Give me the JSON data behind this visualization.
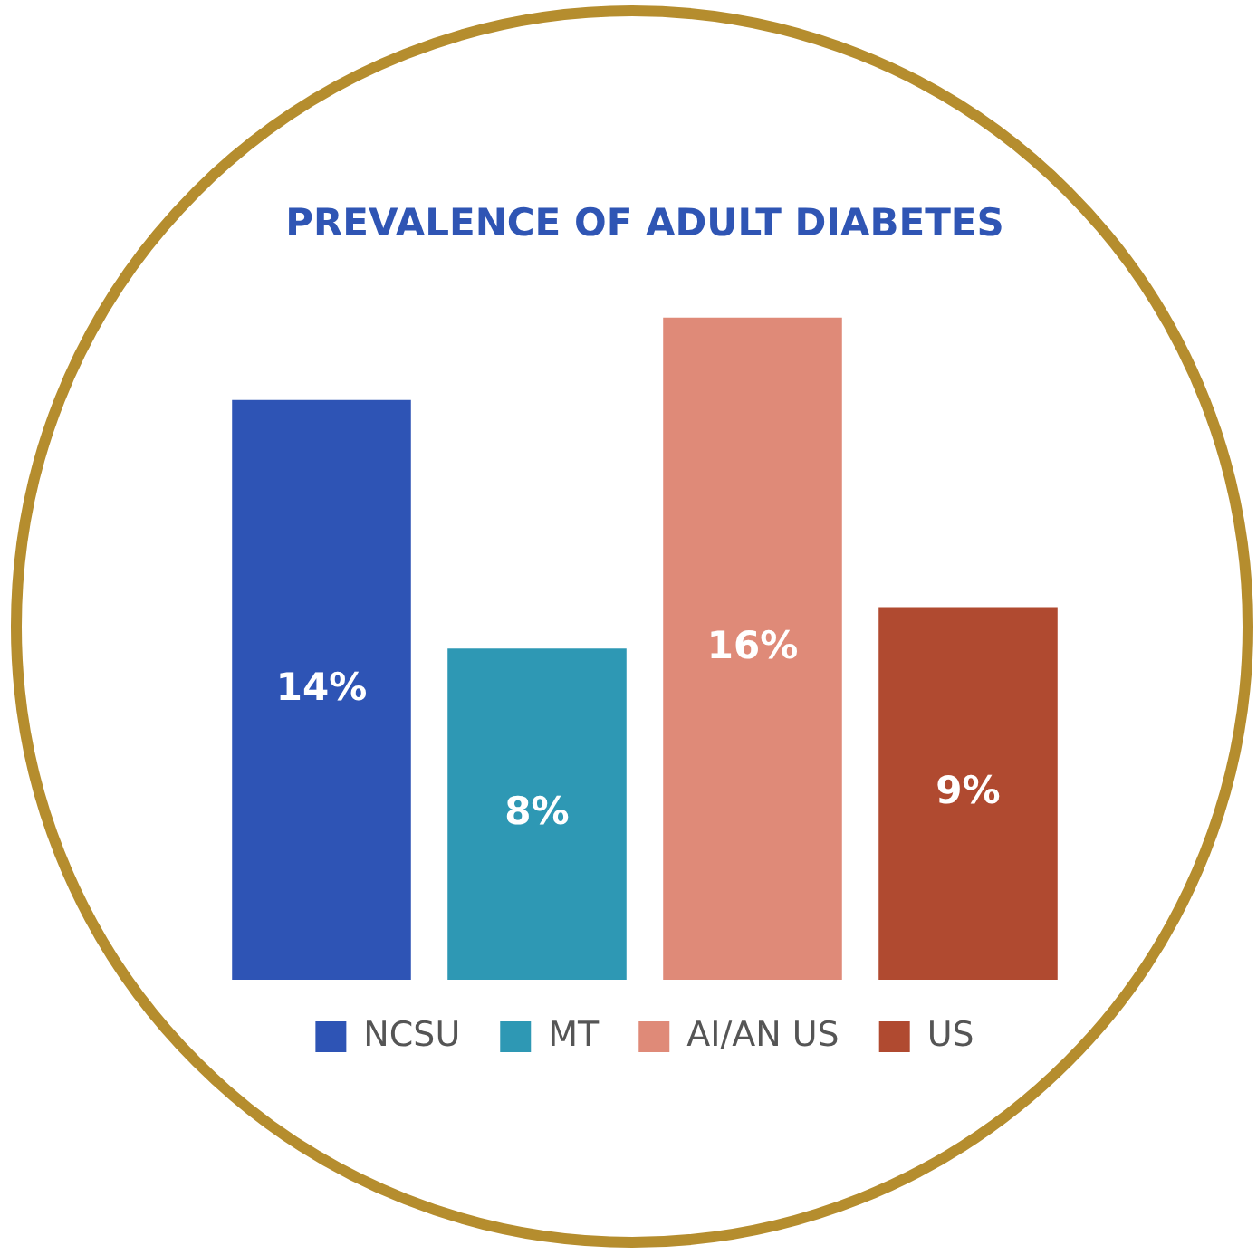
{
  "chart_data": {
    "type": "bar",
    "title": "PREVALENCE OF ADULT DIABETES",
    "categories": [
      null
    ],
    "legend": "bottom",
    "grid": false,
    "series": [
      {
        "name": "NCSU",
        "color": "#2e54b5",
        "values": [
          14
        ],
        "value_labels": [
          "14%"
        ]
      },
      {
        "name": "MT",
        "color": "#2e98b4",
        "values": [
          8
        ],
        "value_labels": [
          "8%"
        ]
      },
      {
        "name": "AI/AN US",
        "color": "#df8a78",
        "values": [
          16
        ],
        "value_labels": [
          "16%"
        ]
      },
      {
        "name": "US",
        "color": "#b04a30",
        "values": [
          9
        ],
        "value_labels": [
          "9%"
        ]
      }
    ]
  }
}
